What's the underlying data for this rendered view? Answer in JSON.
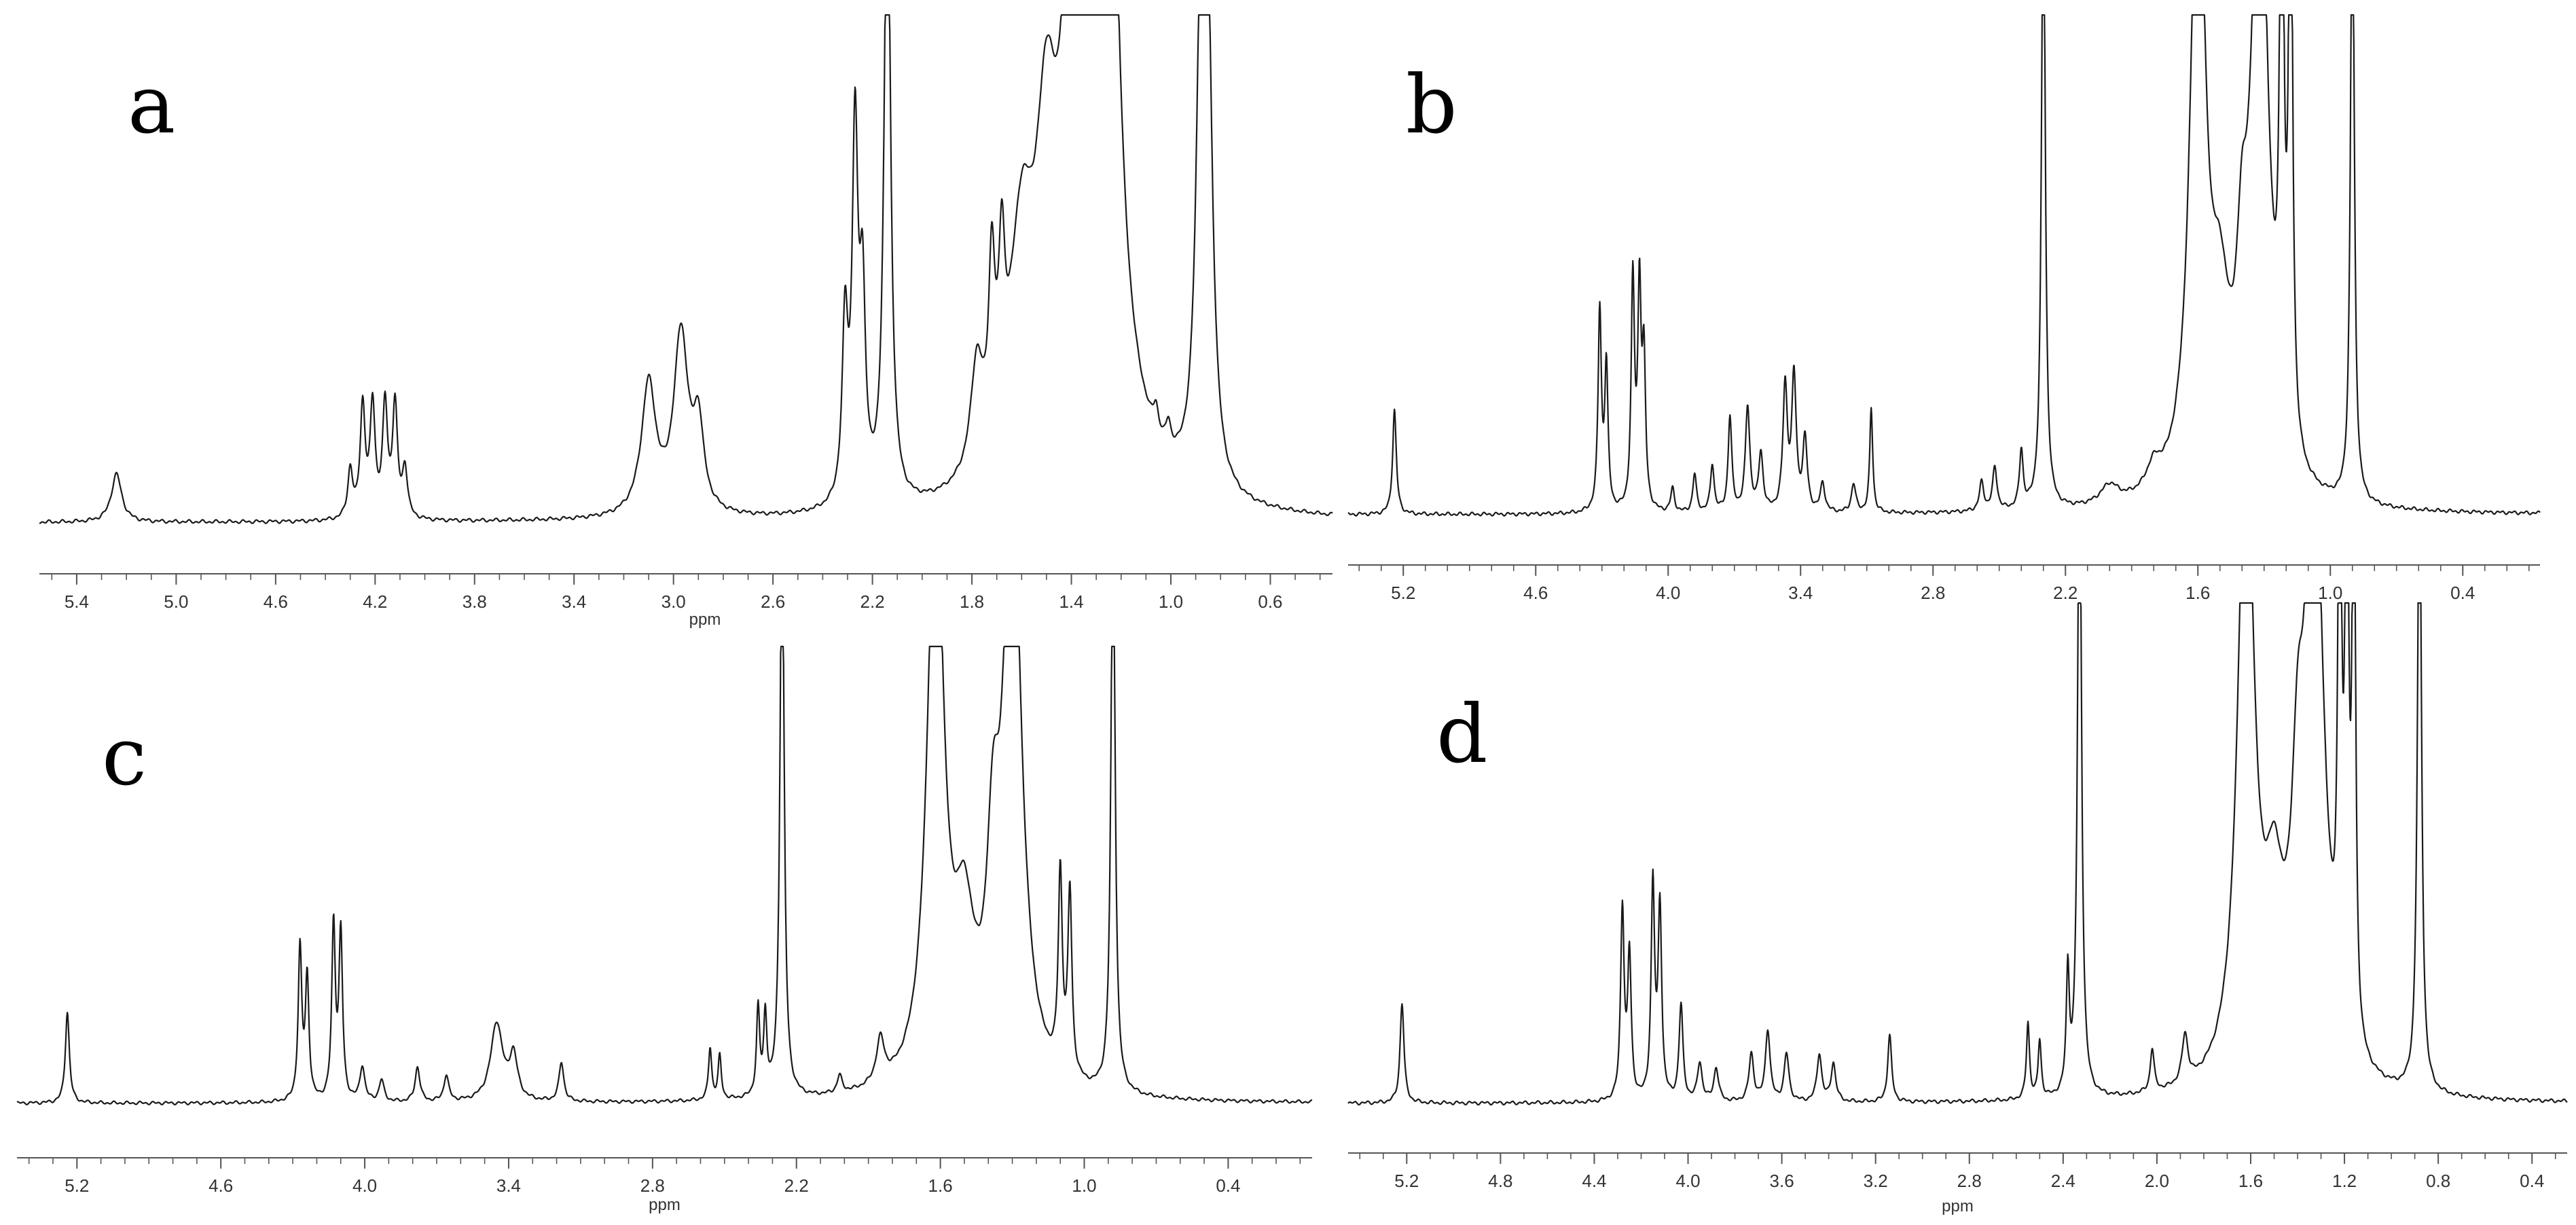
{
  "colors": {
    "trace": "#1a1a1a",
    "axis": "#555555",
    "background": "#ffffff"
  },
  "chart_data": [
    {
      "type": "line",
      "panel_label": "a",
      "xlabel": "ppm",
      "x_reversed": true,
      "xlim": [
        5.55,
        0.35
      ],
      "x_ticks": [
        "5.4",
        "5.0",
        "4.6",
        "4.2",
        "3.8",
        "3.4",
        "3.0",
        "2.6",
        "2.2",
        "1.8",
        "1.4",
        "1.0",
        "0.6"
      ],
      "peaks": [
        {
          "ppm": 5.24,
          "height": 0.1,
          "width": 0.025
        },
        {
          "ppm": 4.3,
          "height": 0.1,
          "width": 0.012
        },
        {
          "ppm": 4.25,
          "height": 0.23,
          "width": 0.012
        },
        {
          "ppm": 4.21,
          "height": 0.23,
          "width": 0.012
        },
        {
          "ppm": 4.16,
          "height": 0.23,
          "width": 0.012
        },
        {
          "ppm": 4.12,
          "height": 0.23,
          "width": 0.012
        },
        {
          "ppm": 4.08,
          "height": 0.1,
          "width": 0.012
        },
        {
          "ppm": 3.1,
          "height": 0.27,
          "width": 0.035
        },
        {
          "ppm": 2.97,
          "height": 0.37,
          "width": 0.035
        },
        {
          "ppm": 2.9,
          "height": 0.17,
          "width": 0.025
        },
        {
          "ppm": 2.31,
          "height": 0.36,
          "width": 0.014
        },
        {
          "ppm": 2.27,
          "height": 0.75,
          "width": 0.014
        },
        {
          "ppm": 2.24,
          "height": 0.4,
          "width": 0.014
        },
        {
          "ppm": 2.14,
          "height": 1.4,
          "width": 0.015
        },
        {
          "ppm": 1.78,
          "height": 0.22,
          "width": 0.03
        },
        {
          "ppm": 1.72,
          "height": 0.35,
          "width": 0.015
        },
        {
          "ppm": 1.68,
          "height": 0.32,
          "width": 0.015
        },
        {
          "ppm": 1.6,
          "height": 0.45,
          "width": 0.06
        },
        {
          "ppm": 1.5,
          "height": 0.55,
          "width": 0.05
        },
        {
          "ppm": 1.42,
          "height": 0.35,
          "width": 0.03
        },
        {
          "ppm": 1.33,
          "height": 1.4,
          "width": 0.08
        },
        {
          "ppm": 1.25,
          "height": 1.2,
          "width": 0.04
        },
        {
          "ppm": 1.06,
          "height": 0.05,
          "width": 0.012
        },
        {
          "ppm": 1.01,
          "height": 0.05,
          "width": 0.012
        },
        {
          "ppm": 0.88,
          "height": 0.9,
          "width": 0.022
        },
        {
          "ppm": 0.85,
          "height": 0.82,
          "width": 0.022
        }
      ]
    },
    {
      "type": "line",
      "panel_label": "b",
      "xlabel": "",
      "x_reversed": true,
      "xlim": [
        5.45,
        0.05
      ],
      "x_ticks": [
        "5.2",
        "4.6",
        "4.0",
        "3.4",
        "2.8",
        "2.2",
        "1.6",
        "1.0",
        "0.4"
      ],
      "peaks": [
        {
          "ppm": 5.24,
          "height": 0.22,
          "width": 0.01
        },
        {
          "ppm": 4.31,
          "height": 0.42,
          "width": 0.009
        },
        {
          "ppm": 4.28,
          "height": 0.3,
          "width": 0.009
        },
        {
          "ppm": 4.16,
          "height": 0.48,
          "width": 0.009
        },
        {
          "ppm": 4.13,
          "height": 0.45,
          "width": 0.009
        },
        {
          "ppm": 4.11,
          "height": 0.3,
          "width": 0.009
        },
        {
          "ppm": 3.98,
          "height": 0.05,
          "width": 0.01
        },
        {
          "ppm": 3.88,
          "height": 0.08,
          "width": 0.01
        },
        {
          "ppm": 3.8,
          "height": 0.1,
          "width": 0.01
        },
        {
          "ppm": 3.72,
          "height": 0.2,
          "width": 0.01
        },
        {
          "ppm": 3.64,
          "height": 0.22,
          "width": 0.012
        },
        {
          "ppm": 3.58,
          "height": 0.12,
          "width": 0.012
        },
        {
          "ppm": 3.47,
          "height": 0.26,
          "width": 0.012
        },
        {
          "ppm": 3.43,
          "height": 0.28,
          "width": 0.012
        },
        {
          "ppm": 3.38,
          "height": 0.15,
          "width": 0.012
        },
        {
          "ppm": 3.3,
          "height": 0.06,
          "width": 0.012
        },
        {
          "ppm": 3.16,
          "height": 0.06,
          "width": 0.012
        },
        {
          "ppm": 3.08,
          "height": 0.22,
          "width": 0.008
        },
        {
          "ppm": 2.58,
          "height": 0.06,
          "width": 0.012
        },
        {
          "ppm": 2.52,
          "height": 0.09,
          "width": 0.012
        },
        {
          "ppm": 2.4,
          "height": 0.12,
          "width": 0.01
        },
        {
          "ppm": 2.3,
          "height": 1.4,
          "width": 0.01
        },
        {
          "ppm": 2.0,
          "height": 0.04,
          "width": 0.05
        },
        {
          "ppm": 1.8,
          "height": 0.05,
          "width": 0.04
        },
        {
          "ppm": 1.6,
          "height": 1.4,
          "width": 0.04
        },
        {
          "ppm": 1.5,
          "height": 0.3,
          "width": 0.05
        },
        {
          "ppm": 1.4,
          "height": 0.3,
          "width": 0.03
        },
        {
          "ppm": 1.32,
          "height": 1.4,
          "width": 0.045
        },
        {
          "ppm": 1.22,
          "height": 1.4,
          "width": 0.01
        },
        {
          "ppm": 1.18,
          "height": 1.4,
          "width": 0.01
        },
        {
          "ppm": 0.9,
          "height": 1.4,
          "width": 0.01
        }
      ]
    },
    {
      "type": "line",
      "panel_label": "c",
      "xlabel": "ppm",
      "x_reversed": true,
      "xlim": [
        5.45,
        0.05
      ],
      "x_ticks": [
        "5.2",
        "4.6",
        "4.0",
        "3.4",
        "2.8",
        "2.2",
        "1.6",
        "1.0",
        "0.4"
      ],
      "peaks": [
        {
          "ppm": 5.24,
          "height": 0.21,
          "width": 0.01
        },
        {
          "ppm": 4.27,
          "height": 0.35,
          "width": 0.009
        },
        {
          "ppm": 4.24,
          "height": 0.28,
          "width": 0.009
        },
        {
          "ppm": 4.13,
          "height": 0.4,
          "width": 0.009
        },
        {
          "ppm": 4.1,
          "height": 0.38,
          "width": 0.009
        },
        {
          "ppm": 4.01,
          "height": 0.08,
          "width": 0.012
        },
        {
          "ppm": 3.93,
          "height": 0.05,
          "width": 0.012
        },
        {
          "ppm": 3.78,
          "height": 0.08,
          "width": 0.012
        },
        {
          "ppm": 3.66,
          "height": 0.06,
          "width": 0.012
        },
        {
          "ppm": 3.45,
          "height": 0.18,
          "width": 0.03
        },
        {
          "ppm": 3.38,
          "height": 0.1,
          "width": 0.02
        },
        {
          "ppm": 3.18,
          "height": 0.09,
          "width": 0.012
        },
        {
          "ppm": 2.56,
          "height": 0.12,
          "width": 0.008
        },
        {
          "ppm": 2.52,
          "height": 0.1,
          "width": 0.008
        },
        {
          "ppm": 2.36,
          "height": 0.2,
          "width": 0.008
        },
        {
          "ppm": 2.33,
          "height": 0.18,
          "width": 0.008
        },
        {
          "ppm": 2.26,
          "height": 1.4,
          "width": 0.01
        },
        {
          "ppm": 2.02,
          "height": 0.04,
          "width": 0.012
        },
        {
          "ppm": 1.85,
          "height": 0.1,
          "width": 0.02
        },
        {
          "ppm": 1.62,
          "height": 1.4,
          "width": 0.04
        },
        {
          "ppm": 1.5,
          "height": 0.32,
          "width": 0.05
        },
        {
          "ppm": 1.38,
          "height": 0.4,
          "width": 0.03
        },
        {
          "ppm": 1.3,
          "height": 1.4,
          "width": 0.045
        },
        {
          "ppm": 1.1,
          "height": 0.45,
          "width": 0.01
        },
        {
          "ppm": 1.06,
          "height": 0.42,
          "width": 0.01
        },
        {
          "ppm": 0.88,
          "height": 1.4,
          "width": 0.01
        }
      ]
    },
    {
      "type": "line",
      "panel_label": "d",
      "xlabel": "ppm",
      "x_reversed": true,
      "xlim": [
        5.45,
        0.25
      ],
      "x_ticks": [
        "5.2",
        "4.8",
        "4.4",
        "4.0",
        "3.6",
        "3.2",
        "2.8",
        "2.4",
        "2.0",
        "1.6",
        "1.2",
        "0.8",
        "0.4"
      ],
      "peaks": [
        {
          "ppm": 5.22,
          "height": 0.21,
          "width": 0.01
        },
        {
          "ppm": 4.28,
          "height": 0.4,
          "width": 0.009
        },
        {
          "ppm": 4.25,
          "height": 0.3,
          "width": 0.009
        },
        {
          "ppm": 4.15,
          "height": 0.45,
          "width": 0.009
        },
        {
          "ppm": 4.12,
          "height": 0.4,
          "width": 0.009
        },
        {
          "ppm": 4.03,
          "height": 0.2,
          "width": 0.01
        },
        {
          "ppm": 3.95,
          "height": 0.08,
          "width": 0.012
        },
        {
          "ppm": 3.88,
          "height": 0.07,
          "width": 0.012
        },
        {
          "ppm": 3.73,
          "height": 0.1,
          "width": 0.012
        },
        {
          "ppm": 3.66,
          "height": 0.15,
          "width": 0.012
        },
        {
          "ppm": 3.58,
          "height": 0.1,
          "width": 0.012
        },
        {
          "ppm": 3.44,
          "height": 0.1,
          "width": 0.012
        },
        {
          "ppm": 3.38,
          "height": 0.08,
          "width": 0.012
        },
        {
          "ppm": 3.14,
          "height": 0.14,
          "width": 0.01
        },
        {
          "ppm": 2.55,
          "height": 0.16,
          "width": 0.008
        },
        {
          "ppm": 2.5,
          "height": 0.12,
          "width": 0.008
        },
        {
          "ppm": 2.38,
          "height": 0.25,
          "width": 0.008
        },
        {
          "ppm": 2.33,
          "height": 1.4,
          "width": 0.01
        },
        {
          "ppm": 2.02,
          "height": 0.09,
          "width": 0.01
        },
        {
          "ppm": 1.88,
          "height": 0.1,
          "width": 0.015
        },
        {
          "ppm": 1.62,
          "height": 1.4,
          "width": 0.04
        },
        {
          "ppm": 1.5,
          "height": 0.32,
          "width": 0.05
        },
        {
          "ppm": 1.4,
          "height": 0.4,
          "width": 0.03
        },
        {
          "ppm": 1.33,
          "height": 1.4,
          "width": 0.045
        },
        {
          "ppm": 1.22,
          "height": 1.4,
          "width": 0.008
        },
        {
          "ppm": 1.19,
          "height": 1.4,
          "width": 0.008
        },
        {
          "ppm": 1.16,
          "height": 1.4,
          "width": 0.008
        },
        {
          "ppm": 0.88,
          "height": 1.4,
          "width": 0.01
        }
      ]
    }
  ]
}
